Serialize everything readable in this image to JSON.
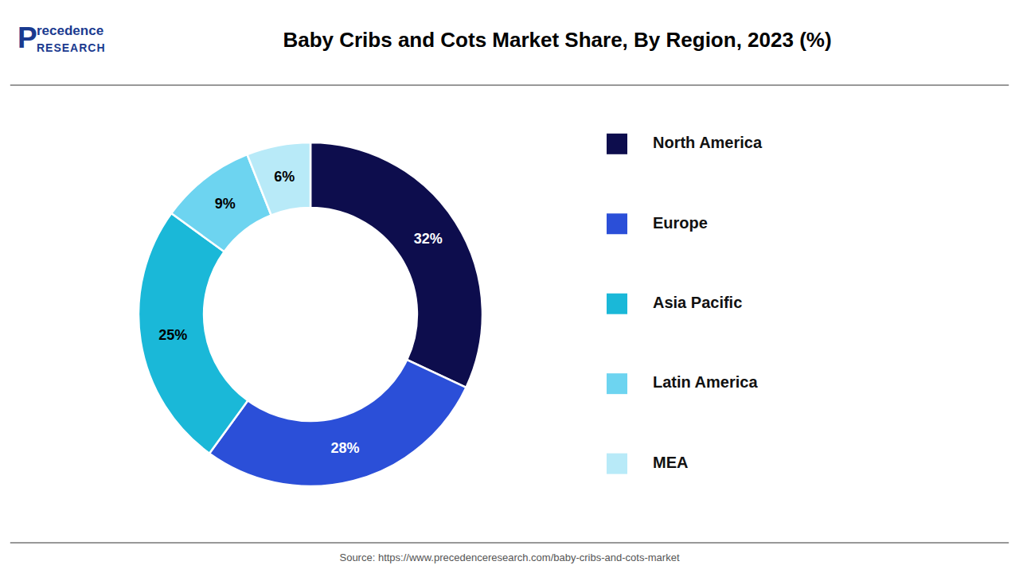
{
  "chart_data": {
    "type": "donut",
    "title": "Baby Cribs and Cots Market Share, By Region, 2023 (%)",
    "categories": [
      "North America",
      "Europe",
      "Asia Pacific",
      "Latin America",
      "MEA"
    ],
    "values": [
      32,
      28,
      25,
      9,
      6
    ],
    "value_labels": [
      "32%",
      "28%",
      "25%",
      "9%",
      "6%"
    ],
    "colors": [
      "#0d0d4d",
      "#2b4fd8",
      "#1ab8d8",
      "#6dd4f0",
      "#b8eaf8"
    ],
    "data_labels": true,
    "legend": "right",
    "annotations": [
      "P",
      "recedence",
      "RESEARCH",
      "Source: https://www.precedenceresearch.com/baby-cribs-and-cots-market"
    ]
  }
}
